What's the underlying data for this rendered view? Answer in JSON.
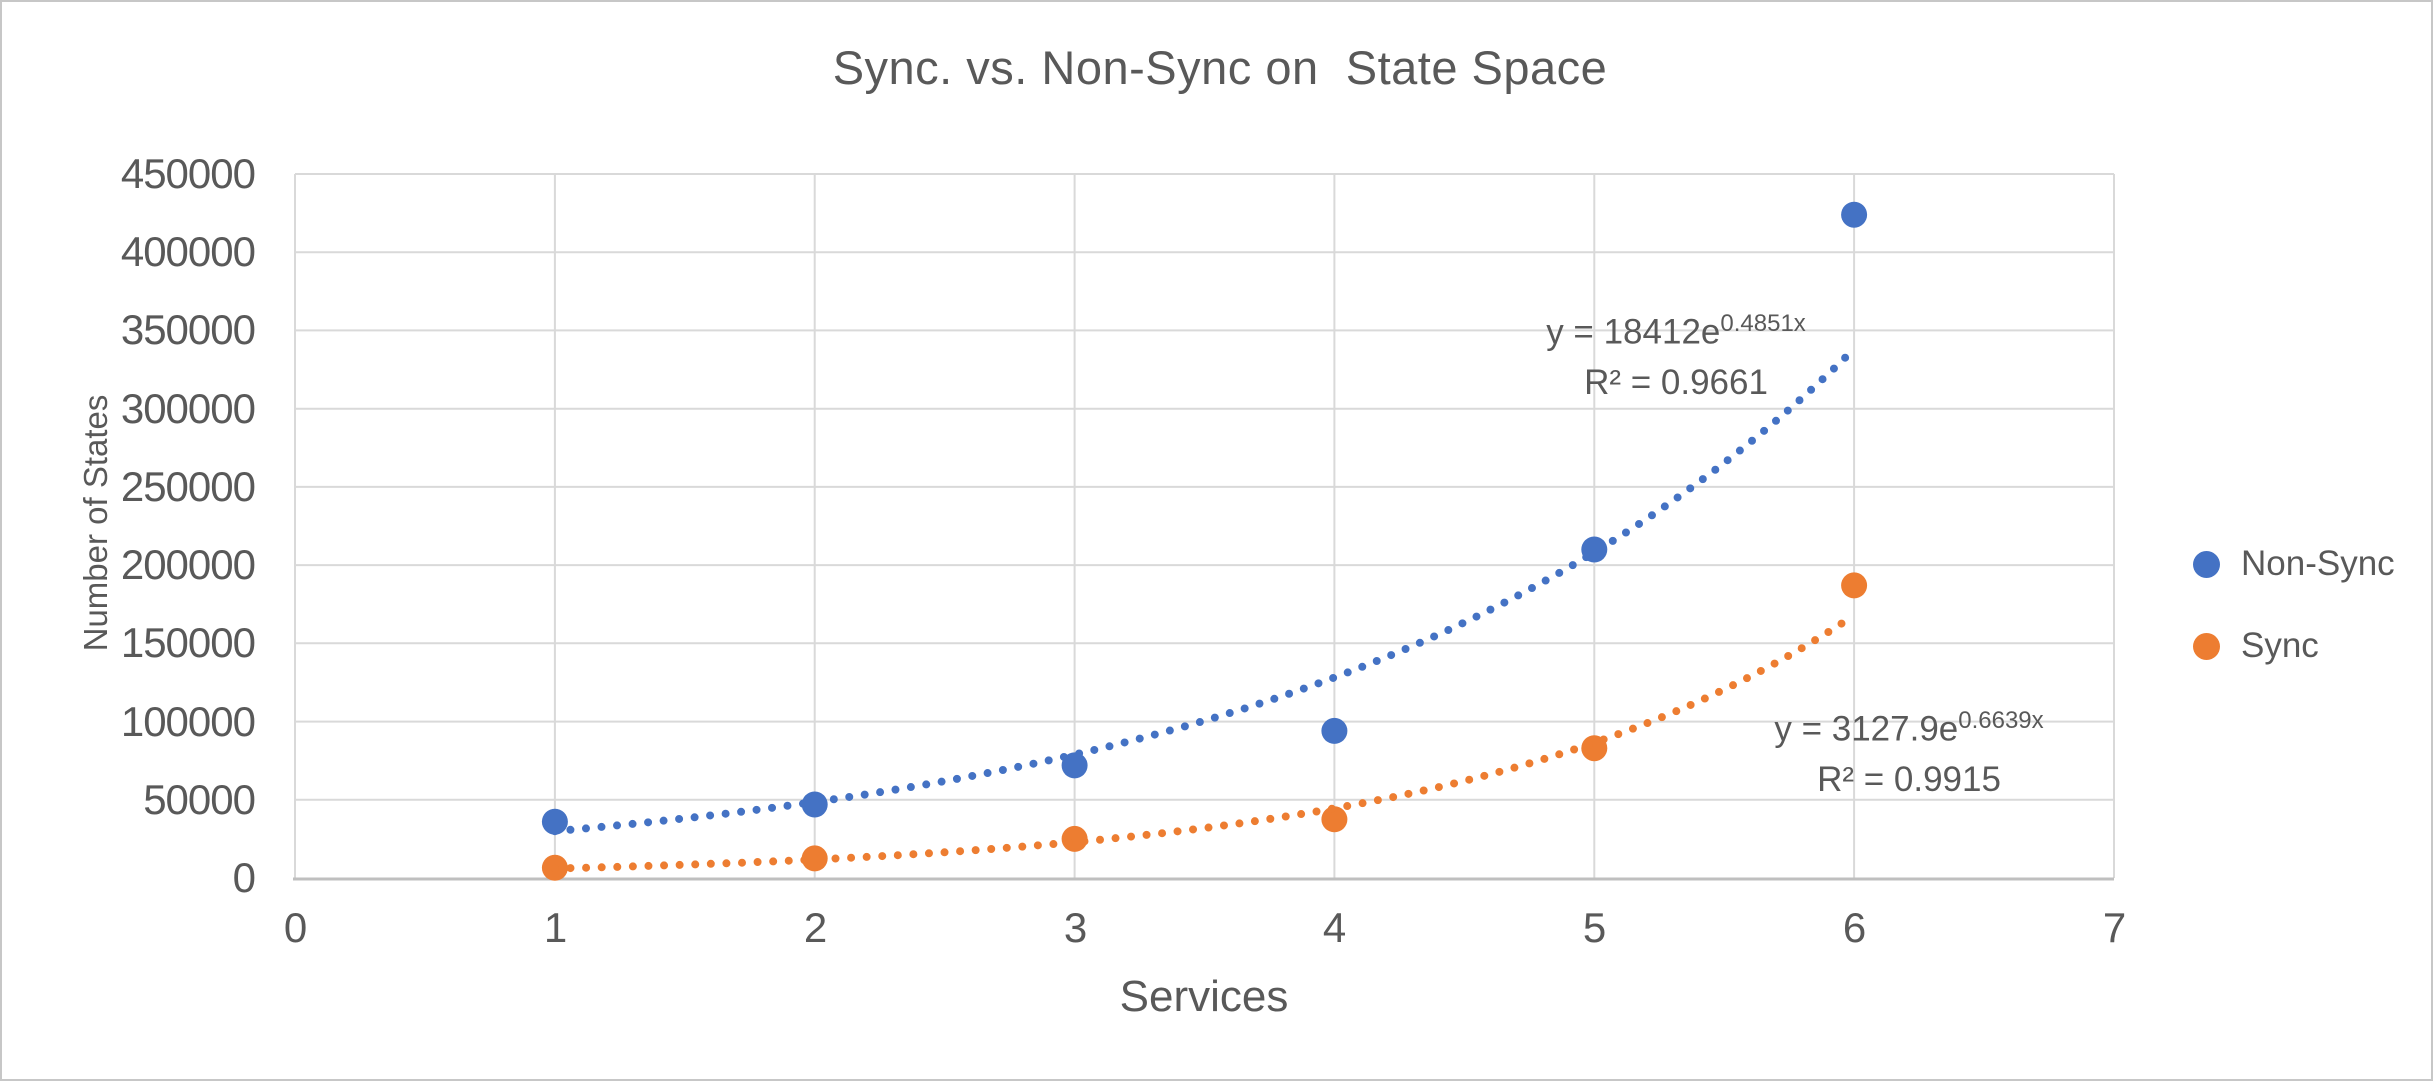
{
  "chart_data": {
    "type": "scatter",
    "title": "Sync. vs. Non-Sync on  State Space",
    "xlabel": "Services",
    "ylabel": "Number of States",
    "xlim": [
      0,
      7
    ],
    "ylim": [
      0,
      450000
    ],
    "grid": true,
    "legend_position": "right",
    "x_ticks": [
      0,
      1,
      2,
      3,
      4,
      5,
      6,
      7
    ],
    "x_tick_labels": [
      "0",
      "1",
      "2",
      "3",
      "4",
      "5",
      "6",
      "7"
    ],
    "y_ticks": [
      0,
      50000,
      100000,
      150000,
      200000,
      250000,
      300000,
      350000,
      400000,
      450000
    ],
    "y_tick_labels": [
      "0",
      "50000",
      "100000",
      "150000",
      "200000",
      "250000",
      "300000",
      "350000",
      "400000",
      "450000"
    ],
    "series": [
      {
        "name": "Non-Sync",
        "color": "#4472C4",
        "marker": "circle",
        "x": [
          1,
          2,
          3,
          4,
          5,
          6
        ],
        "y": [
          36000,
          47000,
          72000,
          94000,
          210000,
          424000
        ],
        "trendline": {
          "kind": "exponential",
          "a": 18412,
          "b": 0.4851,
          "range": [
            1,
            6
          ],
          "base": "y = 18412e",
          "exp": "0.4851x",
          "r2": "R² = 0.9661"
        }
      },
      {
        "name": "Sync",
        "color": "#ED7D31",
        "marker": "circle",
        "x": [
          1,
          2,
          3,
          4,
          5,
          6
        ],
        "y": [
          6500,
          12500,
          25000,
          37500,
          83000,
          187000
        ],
        "trendline": {
          "kind": "exponential",
          "a": 3127.9,
          "b": 0.6639,
          "range": [
            1,
            6
          ],
          "base": "y = 3127.9e",
          "exp": "0.6639x",
          "r2": "R² = 0.9915"
        }
      }
    ],
    "style": {
      "text_color": "#595959",
      "gridline_color": "#D9D9D9",
      "axis_line_color": "#BFBFBF",
      "background": "#FFFFFF",
      "border_color": "#C7C7C7"
    }
  }
}
